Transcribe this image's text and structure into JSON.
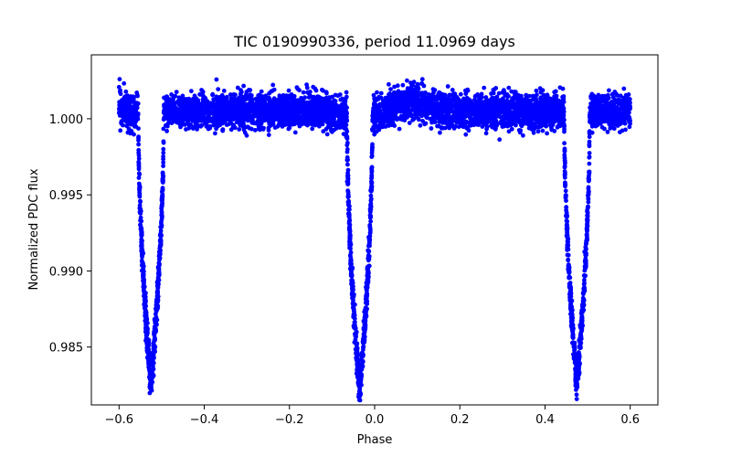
{
  "chart_data": {
    "type": "scatter",
    "title": "TIC 0190990336, period 11.0969 days",
    "xlabel": "Phase",
    "ylabel": "Normalized PDC flux",
    "xlim": [
      -0.665,
      0.665
    ],
    "ylim": [
      0.9812,
      1.0042
    ],
    "x_ticks": [
      -0.6,
      -0.4,
      -0.2,
      0.0,
      0.2,
      0.4,
      0.6
    ],
    "x_tick_labels": [
      "−0.6",
      "−0.4",
      "−0.2",
      "0.0",
      "0.2",
      "0.4",
      "0.6"
    ],
    "y_ticks": [
      0.985,
      0.99,
      0.995,
      1.0
    ],
    "y_tick_labels": [
      "0.985",
      "0.990",
      "0.995",
      "1.000"
    ],
    "grid": false,
    "legend": "none",
    "marker_color": "#0000ff",
    "series": [
      {
        "baseline_flux": 1.0005,
        "phase_range": [
          -0.6,
          0.6
        ],
        "primary_eclipse": {
          "phase_centers": [
            -0.525,
            0.475
          ],
          "min_flux": 0.9825
        },
        "secondary_eclipse": {
          "phase_center": -0.035,
          "min_flux": 0.9825
        },
        "brightening_bump": {
          "phase_center": 0.08,
          "peak_flux": 1.0012
        }
      }
    ]
  }
}
